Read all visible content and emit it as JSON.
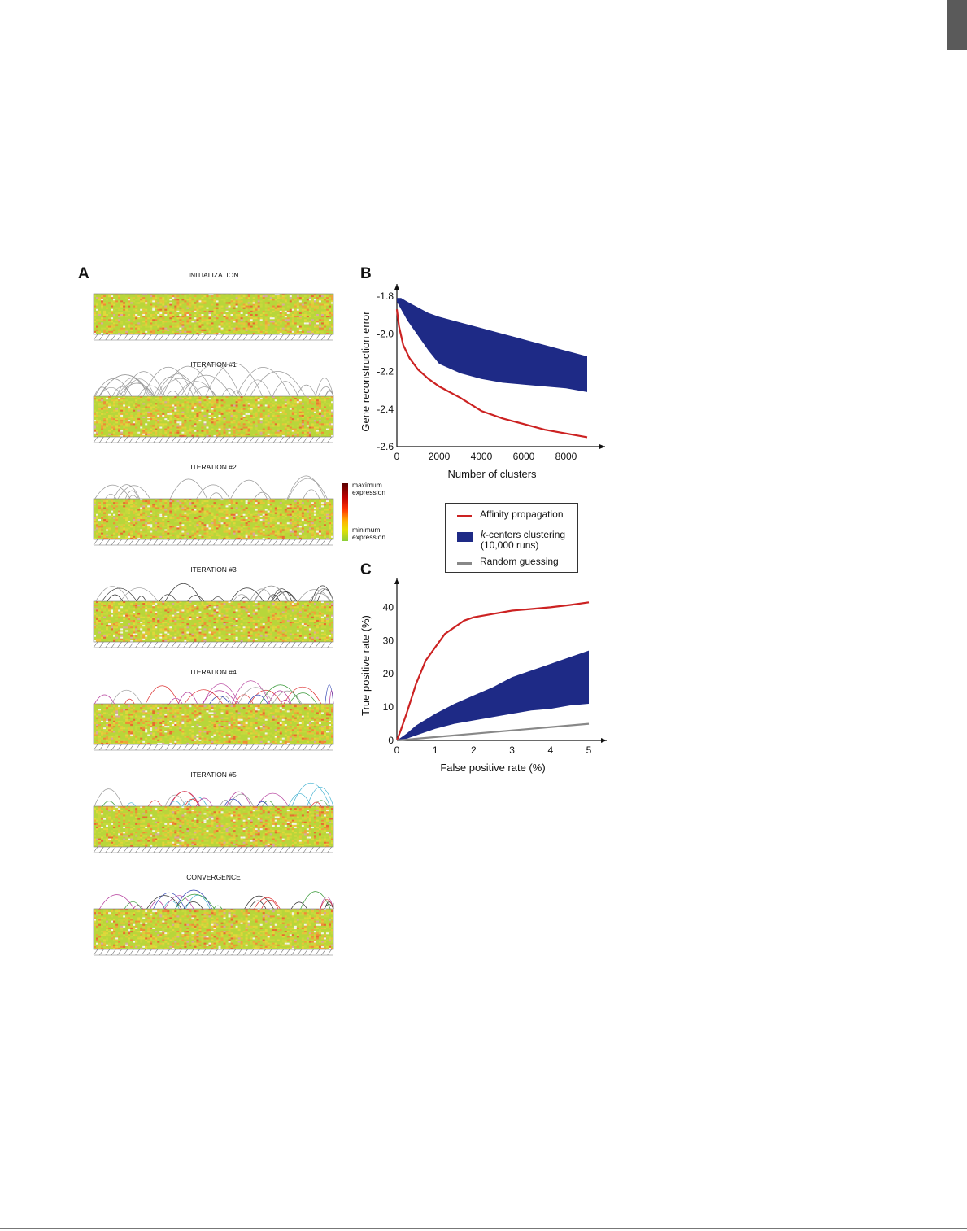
{
  "figure": {
    "panel_labels": {
      "a": "A",
      "b": "B",
      "c": "C"
    },
    "panel_a": {
      "stages": [
        {
          "title": "INITIALIZATION"
        },
        {
          "title": "ITERATION #1"
        },
        {
          "title": "ITERATION #2"
        },
        {
          "title": "ITERATION #3"
        },
        {
          "title": "ITERATION #4"
        },
        {
          "title": "ITERATION #5"
        },
        {
          "title": "CONVERGENCE"
        }
      ],
      "colorbar": {
        "top_label_1": "maximum",
        "top_label_2": "expression",
        "bottom_label_1": "minimum",
        "bottom_label_2": "expression"
      }
    },
    "legend": {
      "items": [
        {
          "label": "Affinity propagation",
          "color": "#cc2222"
        },
        {
          "label_italic": "k",
          "label": "-centers clustering",
          "label_line2": "(10,000 runs)",
          "color": "#1e2a86"
        },
        {
          "label": "Random guessing",
          "color": "#888888"
        }
      ]
    },
    "colors": {
      "affinity": "#cc2222",
      "kcenters": "#1e2a86",
      "random": "#888888"
    }
  },
  "chart_data": [
    {
      "type": "line",
      "panel": "B",
      "xlabel": "Number of clusters",
      "ylabel": "Gene reconstruction error",
      "xlim": [
        0,
        9000
      ],
      "ylim": [
        -2.6,
        -1.8
      ],
      "xticks": [
        "0",
        "2000",
        "4000",
        "6000",
        "8000"
      ],
      "xtick_values": [
        0,
        2000,
        4000,
        6000,
        8000
      ],
      "yticks": [
        "-1.8",
        "-2.0",
        "-2.2",
        "-2.4",
        "-2.6"
      ],
      "ytick_values": [
        -1.8,
        -2.0,
        -2.2,
        -2.4,
        -2.6
      ],
      "series": [
        {
          "name": "Affinity propagation",
          "x": [
            0,
            100,
            300,
            600,
            1000,
            1500,
            2000,
            3000,
            4000,
            5000,
            6000,
            7000,
            8000,
            9000
          ],
          "y": [
            -1.87,
            -1.96,
            -2.06,
            -2.13,
            -2.19,
            -2.24,
            -2.28,
            -2.34,
            -2.41,
            -2.45,
            -2.48,
            -2.51,
            -2.53,
            -2.55
          ]
        },
        {
          "name": "k-centers clustering (10,000 runs)",
          "band": true,
          "x": [
            0,
            200,
            500,
            1000,
            1500,
            2000,
            3000,
            4000,
            5000,
            6000,
            7000,
            8000,
            9000
          ],
          "y_upper": [
            -1.81,
            -1.81,
            -1.83,
            -1.86,
            -1.89,
            -1.91,
            -1.94,
            -1.97,
            -2.0,
            -2.03,
            -2.06,
            -2.09,
            -2.12
          ],
          "y_lower": [
            -1.83,
            -1.87,
            -1.93,
            -2.01,
            -2.09,
            -2.16,
            -2.21,
            -2.24,
            -2.26,
            -2.27,
            -2.28,
            -2.29,
            -2.31
          ]
        }
      ]
    },
    {
      "type": "line",
      "panel": "C",
      "xlabel": "False positive rate (%)",
      "ylabel": "True positive rate (%)",
      "xlim": [
        0,
        5
      ],
      "ylim": [
        0,
        45
      ],
      "xticks": [
        "0",
        "1",
        "2",
        "3",
        "4",
        "5"
      ],
      "xtick_values": [
        0,
        1,
        2,
        3,
        4,
        5
      ],
      "yticks": [
        "0",
        "10",
        "20",
        "30",
        "40"
      ],
      "ytick_values": [
        0,
        10,
        20,
        30,
        40
      ],
      "series": [
        {
          "name": "Affinity propagation",
          "x": [
            0,
            0.1,
            0.25,
            0.5,
            0.75,
            1.0,
            1.25,
            1.5,
            1.75,
            2.0,
            2.5,
            3.0,
            3.5,
            4.0,
            4.5,
            5.0
          ],
          "y": [
            0,
            3,
            8,
            17,
            24,
            28,
            32,
            34,
            36,
            37,
            38,
            39,
            39.5,
            40,
            40.7,
            41.5
          ]
        },
        {
          "name": "k-centers clustering (10,000 runs)",
          "band": true,
          "x": [
            0,
            0.25,
            0.5,
            1.0,
            1.5,
            2.0,
            2.5,
            3.0,
            3.5,
            4.0,
            4.5,
            5.0
          ],
          "y_upper": [
            0,
            2,
            4.5,
            8,
            11,
            13.5,
            16,
            19,
            21,
            23,
            25,
            27
          ],
          "y_lower": [
            0,
            0.5,
            1.5,
            3.5,
            5,
            6,
            7,
            8,
            9,
            9.5,
            10.5,
            11
          ]
        },
        {
          "name": "Random guessing",
          "x": [
            0,
            5
          ],
          "y": [
            0,
            5
          ]
        }
      ]
    }
  ]
}
